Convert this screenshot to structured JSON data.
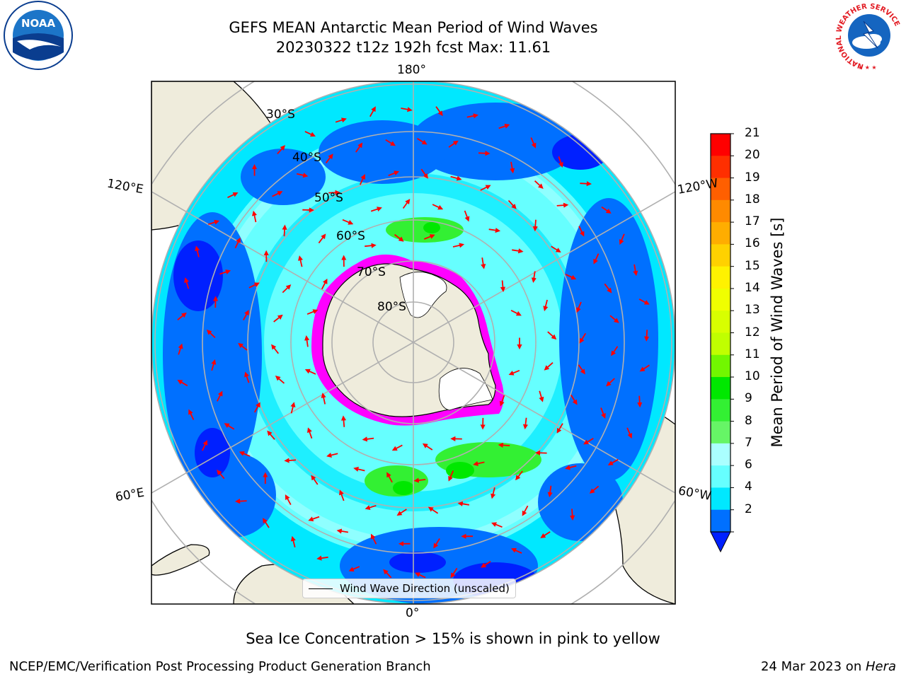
{
  "title": "GEFS MEAN Antarctic Mean Period of Wind Waves",
  "subtitle": "20230322 t12z 192h fcst   Max: 11.61",
  "map": {
    "projection": "south-polar-stereographic",
    "longitude_labels": [
      "180°",
      "120°E",
      "120°W",
      "60°E",
      "60°W",
      "0°"
    ],
    "latitude_labels": [
      "30°S",
      "40°S",
      "50°S",
      "60°S",
      "70°S",
      "80°S"
    ],
    "land_color": "#efecdc",
    "ice_color": "#ff00ff",
    "arrow_color": "#ff0000"
  },
  "legend": {
    "label": "Wind Wave Direction (unscaled)"
  },
  "colorbar": {
    "label": "Mean Period of Wind Waves [s]",
    "ticks": [
      "21",
      "20",
      "19",
      "18",
      "17",
      "16",
      "15",
      "14",
      "13",
      "12",
      "11",
      "10",
      "9",
      "8",
      "7",
      "6",
      "4",
      "2"
    ],
    "bands_top_to_bottom": [
      "#ff0000",
      "#ff2f00",
      "#ff5f00",
      "#ff8a00",
      "#ffad00",
      "#ffd100",
      "#fff200",
      "#f0ff00",
      "#d8ff00",
      "#c0ff00",
      "#72f700",
      "#00e800",
      "#33f033",
      "#66f566",
      "#aaffff",
      "#66ffff",
      "#00e8ff",
      "#0070ff"
    ],
    "below_min_color": "#0020ff"
  },
  "caption": "Sea Ice Concentration > 15% is shown in pink to yellow",
  "footer": {
    "left": "NCEP/EMC/Verification Post Processing Product Generation Branch",
    "date": "24 Mar 2023 on ",
    "machine": "Hera"
  },
  "logos": {
    "noaa": "NOAA",
    "nws_ring": "NATIONAL WEATHER SERVICE"
  }
}
